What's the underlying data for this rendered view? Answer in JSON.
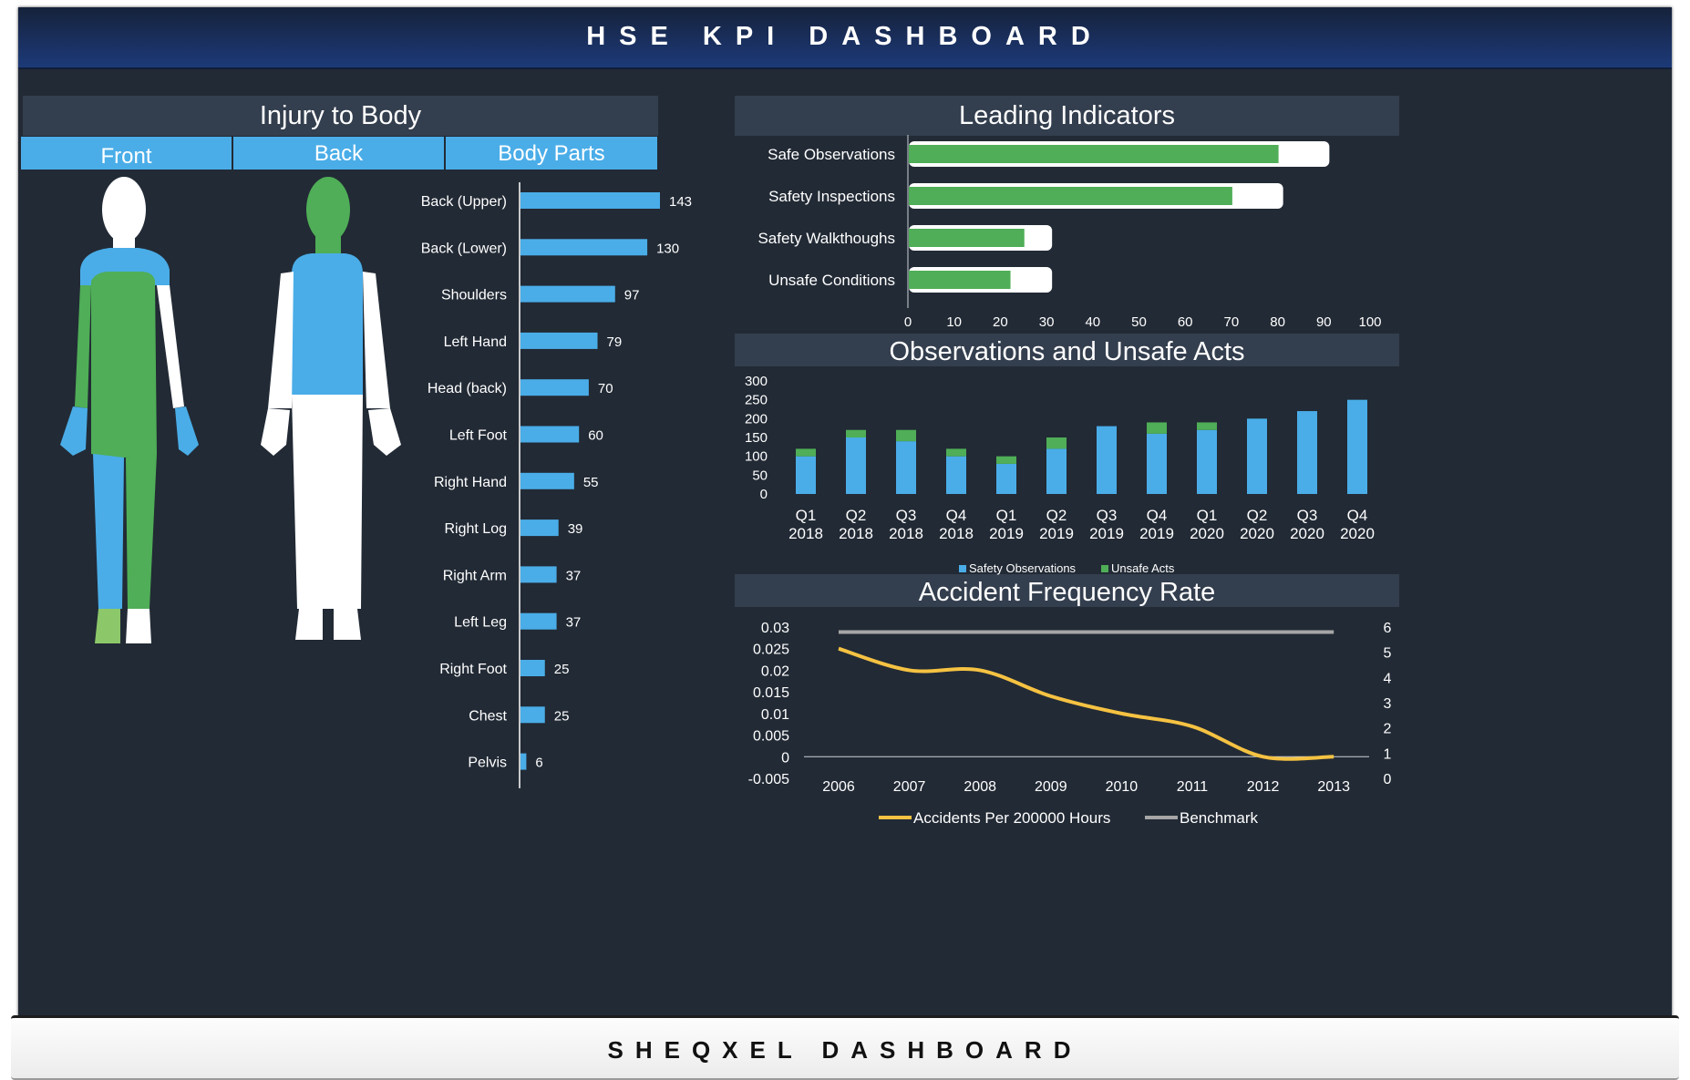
{
  "header": {
    "title": "HSE KPI DASHBOARD"
  },
  "footer": {
    "title": "SHEQXEL DASHBOARD"
  },
  "injury_panel": {
    "title": "Injury to Body",
    "tabs": [
      {
        "label": "Front"
      },
      {
        "label": "Back"
      },
      {
        "label": "Body Parts"
      }
    ]
  },
  "leading_panel": {
    "title": "Leading Indicators"
  },
  "obs_panel": {
    "title": "Observations and Unsafe Acts"
  },
  "afr_panel": {
    "title": "Accident Frequency Rate"
  },
  "colors": {
    "blue": "#4aade8",
    "green": "#4fae57",
    "white": "#ffffff",
    "yellow": "#f5c242",
    "grey": "#a6a6a6",
    "light_green": "#8cc86a"
  },
  "chart_data": [
    {
      "type": "bar",
      "orientation": "horizontal",
      "categories": [
        "Back (Upper)",
        "Back (Lower)",
        "Shoulders",
        "Left Hand",
        "Head (back)",
        "Left Foot",
        "Right Hand",
        "Right Log",
        "Right Arm",
        "Left Leg",
        "Right Foot",
        "Chest",
        "Pelvis"
      ],
      "values": [
        143,
        130,
        97,
        79,
        70,
        60,
        55,
        39,
        37,
        37,
        25,
        25,
        6
      ],
      "data_labels": true
    },
    {
      "type": "bar",
      "orientation": "horizontal",
      "categories": [
        "Safe Observations",
        "Safety Inspections",
        "Safety Walkthoughs",
        "Unsafe Conditions"
      ],
      "series": [
        {
          "values": [
            80,
            70,
            25,
            22
          ]
        },
        {
          "values": [
            91,
            81,
            31,
            31
          ]
        }
      ],
      "xlim": [
        0,
        100
      ],
      "xticks": [
        0,
        10,
        20,
        30,
        40,
        50,
        60,
        70,
        80,
        90,
        100
      ]
    },
    {
      "type": "bar",
      "stacked": true,
      "categories": [
        [
          "Q1",
          "2018"
        ],
        [
          "Q2",
          "2018"
        ],
        [
          "Q3",
          "2018"
        ],
        [
          "Q4",
          "2018"
        ],
        [
          "Q1",
          "2019"
        ],
        [
          "Q2",
          "2019"
        ],
        [
          "Q3",
          "2019"
        ],
        [
          "Q4",
          "2019"
        ],
        [
          "Q1",
          "2020"
        ],
        [
          "Q2",
          "2020"
        ],
        [
          "Q3",
          "2020"
        ],
        [
          "Q4",
          "2020"
        ]
      ],
      "series": [
        {
          "name": "Safety Observations",
          "values": [
            100,
            150,
            140,
            100,
            80,
            120,
            180,
            160,
            170,
            200,
            220,
            250
          ]
        },
        {
          "name": "Unsafe Acts",
          "values": [
            20,
            20,
            30,
            20,
            20,
            30,
            0,
            30,
            20,
            0,
            0,
            0
          ]
        }
      ],
      "ylim": [
        0,
        300
      ],
      "yticks": [
        0,
        50,
        100,
        150,
        200,
        250,
        300
      ],
      "legend": "bottom"
    },
    {
      "type": "line",
      "x": [
        "2006",
        "2007",
        "2008",
        "2009",
        "2010",
        "2011",
        "2012",
        "2013"
      ],
      "series": [
        {
          "name": "Accidents Per 200000 Hours",
          "axis": "left",
          "values": [
            0.025,
            0.02,
            0.02,
            0.014,
            0.01,
            0.007,
            0.0,
            0.0
          ]
        },
        {
          "name": "Benchmark",
          "axis": "right",
          "values": [
            5.8,
            5.8,
            5.8,
            5.8,
            5.8,
            5.8,
            5.8,
            5.8
          ]
        }
      ],
      "ylim": [
        -0.005,
        0.03
      ],
      "yticks": [
        "0.03",
        "0.025",
        "0.02",
        "0.015",
        "0.01",
        "0.005",
        "0",
        "-0.005"
      ],
      "y2lim": [
        0,
        6
      ],
      "y2ticks": [
        6,
        5,
        4,
        3,
        2,
        1,
        0
      ],
      "legend": "bottom"
    }
  ]
}
